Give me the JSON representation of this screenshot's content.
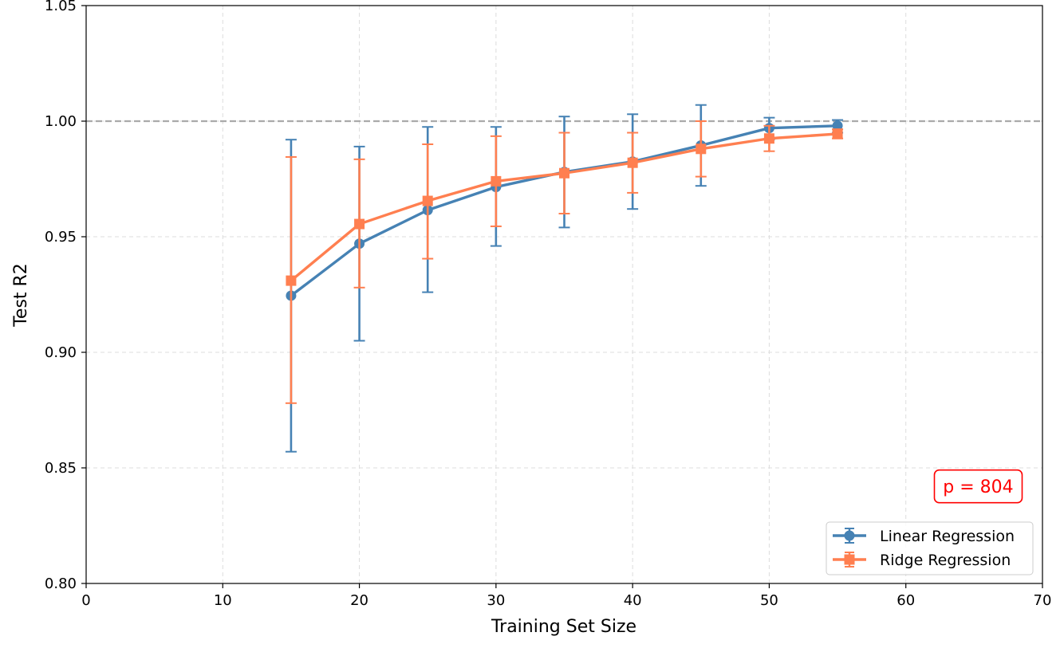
{
  "chart_data": {
    "type": "line",
    "xlabel": "Training Set Size",
    "ylabel": "Test R2",
    "xlim": [
      0,
      70
    ],
    "ylim": [
      0.8,
      1.05
    ],
    "xticks": [
      0,
      10,
      20,
      30,
      40,
      50,
      60,
      70
    ],
    "xtick_labels": [
      "0",
      "10",
      "20",
      "30",
      "40",
      "50",
      "60",
      "70"
    ],
    "yticks": [
      0.8,
      0.85,
      0.9,
      0.95,
      1.0,
      1.05
    ],
    "ytick_labels": [
      "0.80",
      "0.85",
      "0.90",
      "0.95",
      "1.00",
      "1.05"
    ],
    "grid": true,
    "reference_line": {
      "y": 1.0,
      "style": "dashed",
      "color": "#aaaaaa"
    },
    "legend_position": "lower-right",
    "series": [
      {
        "name": "Linear Regression",
        "color": "#4682b4",
        "marker": "circle",
        "x": [
          15,
          20,
          25,
          30,
          35,
          40,
          45,
          50,
          55
        ],
        "y": [
          0.9245,
          0.947,
          0.9615,
          0.9715,
          0.978,
          0.9825,
          0.9895,
          0.997,
          0.998
        ],
        "err_low": [
          0.857,
          0.905,
          0.926,
          0.946,
          0.954,
          0.962,
          0.972,
          0.992,
          0.995
        ],
        "err_high": [
          0.992,
          0.989,
          0.9975,
          0.9975,
          1.002,
          1.003,
          1.007,
          1.0015,
          1.0005
        ]
      },
      {
        "name": "Ridge Regression",
        "color": "#ff7f50",
        "marker": "square",
        "x": [
          15,
          20,
          25,
          30,
          35,
          40,
          45,
          50,
          55
        ],
        "y": [
          0.931,
          0.9555,
          0.9655,
          0.974,
          0.9775,
          0.982,
          0.988,
          0.9925,
          0.9945
        ],
        "err_low": [
          0.878,
          0.928,
          0.9405,
          0.9545,
          0.96,
          0.969,
          0.976,
          0.987,
          0.9925
        ],
        "err_high": [
          0.9845,
          0.9835,
          0.99,
          0.9935,
          0.995,
          0.995,
          1.0,
          0.998,
          0.9965
        ]
      }
    ],
    "annotation": {
      "text": "p = 804",
      "color": "#ff0000",
      "x": 65.3,
      "y": 0.842
    }
  }
}
